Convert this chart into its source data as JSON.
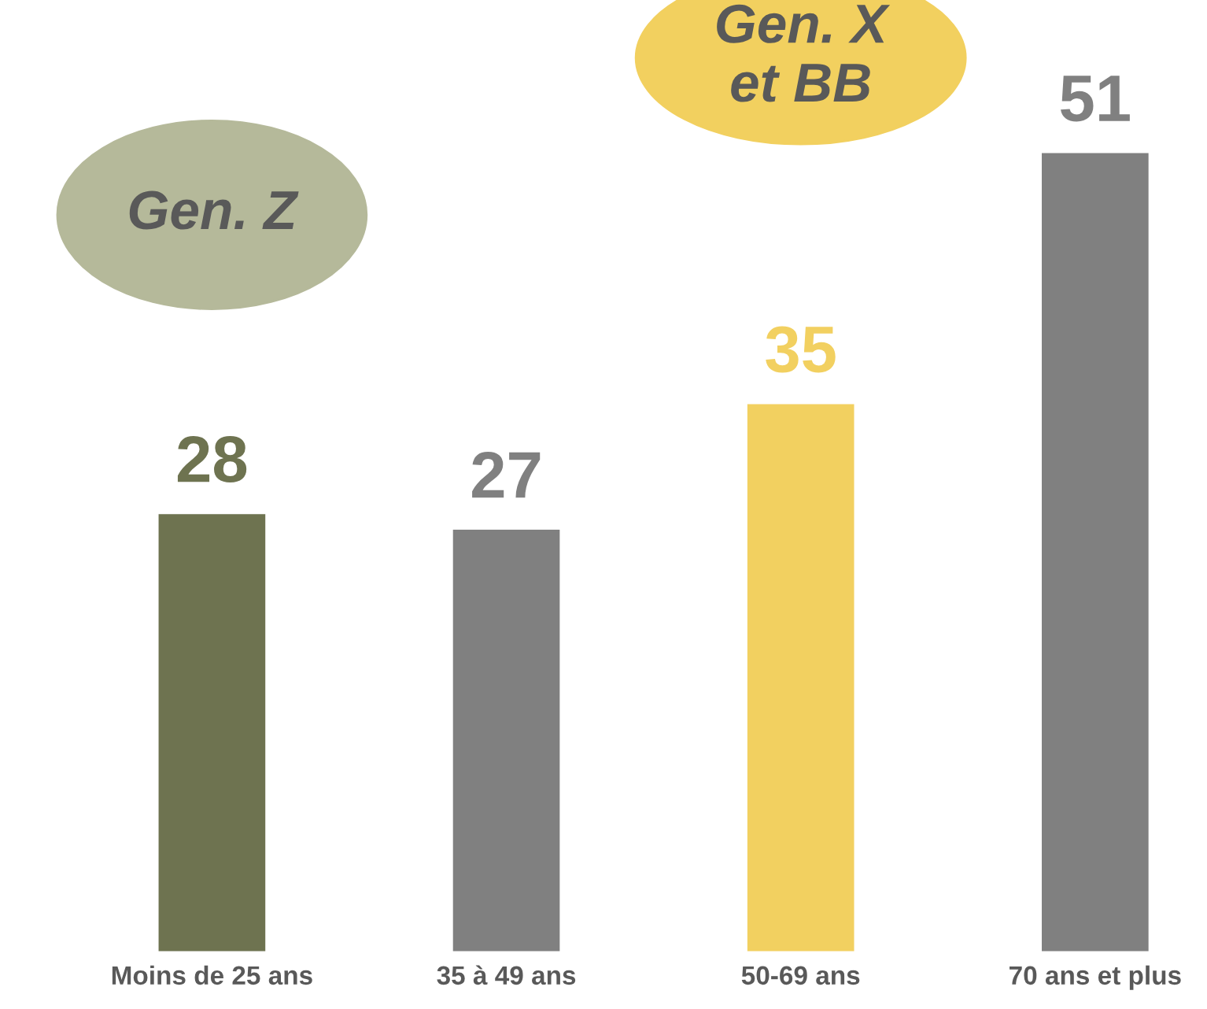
{
  "chart_data": {
    "type": "bar",
    "categories": [
      "Moins de 25 ans",
      "35 à 49 ans",
      "50-69 ans",
      "70 ans et plus"
    ],
    "values": [
      28,
      27,
      35,
      51
    ],
    "colors": [
      "#6e7350",
      "#808080",
      "#f2d060",
      "#808080"
    ],
    "data_labels": true,
    "annotations": [
      "Gen. Z",
      "Gen. X\net BB"
    ]
  }
}
